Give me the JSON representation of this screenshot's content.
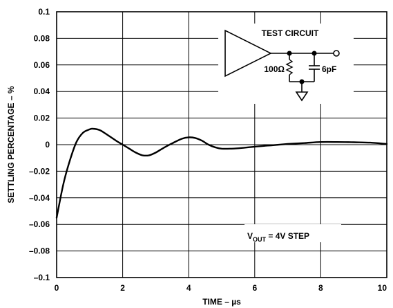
{
  "chart_data": {
    "type": "line",
    "xlabel": "TIME – µs",
    "ylabel": "SETTLING PERCENTAGE – %",
    "xlim": [
      0,
      10
    ],
    "ylim": [
      -0.1,
      0.1
    ],
    "grid": true,
    "x_ticks": [
      "0",
      "2",
      "4",
      "6",
      "8",
      "10"
    ],
    "y_ticks": [
      "0.1",
      "0.08",
      "0.06",
      "0.04",
      "0.02",
      "0",
      "–0.02",
      "–0.04",
      "–0.06",
      "–0.08",
      "–0.1"
    ],
    "series": [
      {
        "x": [
          0,
          0.2,
          0.4,
          0.6,
          0.8,
          1.0,
          1.1,
          1.3,
          1.5,
          1.8,
          2.0,
          2.2,
          2.4,
          2.6,
          2.8,
          3.0,
          3.2,
          3.5,
          3.8,
          4.0,
          4.2,
          4.4,
          4.6,
          4.8,
          5.0,
          5.3,
          5.6,
          6.0,
          6.5,
          7.0,
          7.5,
          8.0,
          8.5,
          9.0,
          9.5,
          10.0
        ],
        "y": [
          -0.055,
          -0.03,
          -0.012,
          0.002,
          0.009,
          0.0115,
          0.012,
          0.011,
          0.008,
          0.003,
          0.0,
          -0.003,
          -0.006,
          -0.008,
          -0.008,
          -0.006,
          -0.003,
          0.001,
          0.0045,
          0.0055,
          0.005,
          0.003,
          0.0,
          -0.002,
          -0.003,
          -0.003,
          -0.0025,
          -0.0015,
          -0.0005,
          0.0005,
          0.0012,
          0.002,
          0.002,
          0.0018,
          0.0015,
          0.0005
        ]
      }
    ],
    "annotations": {
      "vout_main": "V",
      "vout_sub": "OUT",
      "vout_rest": " = 4V STEP",
      "test_circuit_title": "TEST CIRCUIT",
      "resistor_label": "100Ω",
      "capacitor_label": "6pF"
    }
  }
}
